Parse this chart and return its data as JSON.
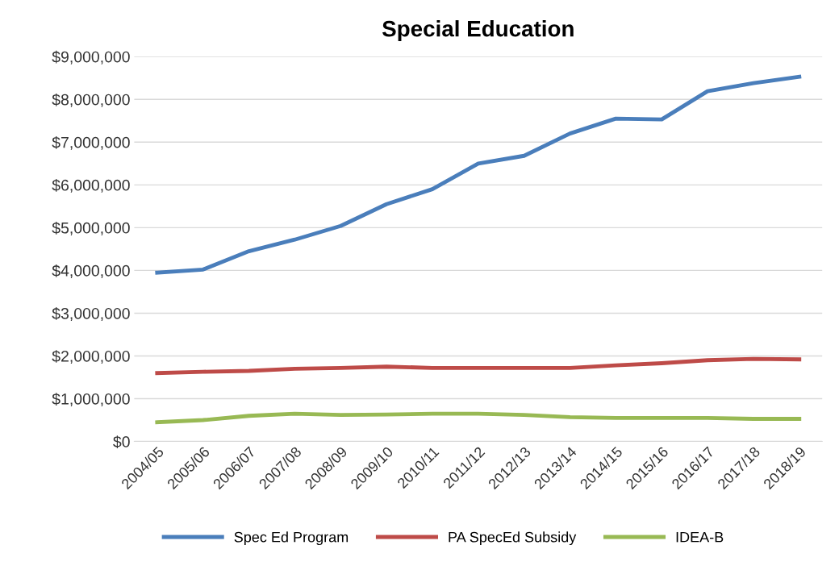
{
  "chart_data": {
    "type": "line",
    "title": "Special Education",
    "categories": [
      "2004/05",
      "2005/06",
      "2006/07",
      "2007/08",
      "2008/09",
      "2009/10",
      "2010/11",
      "2011/12",
      "2012/13",
      "2013/14",
      "2014/15",
      "2015/16",
      "2016/17",
      "2017/18",
      "2018/19"
    ],
    "series": [
      {
        "name": "Spec Ed Program",
        "color": "#4a7ebb",
        "values": [
          3950000,
          4020000,
          4450000,
          4720000,
          5040000,
          5550000,
          5900000,
          6500000,
          6680000,
          7200000,
          7550000,
          7530000,
          8190000,
          8380000,
          8530000
        ]
      },
      {
        "name": "PA SpecEd Subsidy",
        "color": "#be4b48",
        "values": [
          1600000,
          1630000,
          1650000,
          1700000,
          1720000,
          1750000,
          1720000,
          1720000,
          1720000,
          1720000,
          1780000,
          1830000,
          1900000,
          1930000,
          1920000
        ]
      },
      {
        "name": "IDEA-B",
        "color": "#98b954",
        "values": [
          450000,
          500000,
          600000,
          650000,
          620000,
          630000,
          650000,
          650000,
          620000,
          570000,
          550000,
          550000,
          550000,
          530000,
          530000
        ]
      }
    ],
    "ylim": [
      0,
      9000000
    ],
    "yticks": [
      {
        "value": 0,
        "label": "$0"
      },
      {
        "value": 1000000,
        "label": "$1,000,000"
      },
      {
        "value": 2000000,
        "label": "$2,000,000"
      },
      {
        "value": 3000000,
        "label": "$3,000,000"
      },
      {
        "value": 4000000,
        "label": "$4,000,000"
      },
      {
        "value": 5000000,
        "label": "$5,000,000"
      },
      {
        "value": 6000000,
        "label": "$6,000,000"
      },
      {
        "value": 7000000,
        "label": "$7,000,000"
      },
      {
        "value": 8000000,
        "label": "$8,000,000"
      },
      {
        "value": 9000000,
        "label": "$9,000,000"
      }
    ],
    "grid": "y",
    "legend": "bottom",
    "marker": "none",
    "line_style": "solid"
  }
}
